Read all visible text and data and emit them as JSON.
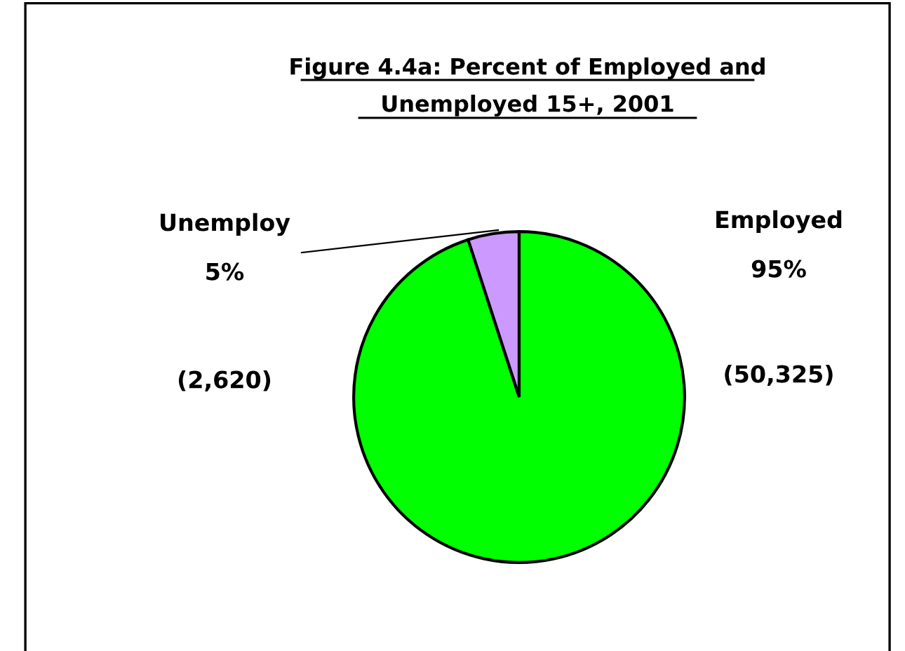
{
  "chart_data": {
    "type": "pie",
    "title": "Figure 4.4a: Percent of Employed and\nUnemployed 15+, 2001",
    "categories": [
      "Unemploy",
      "Employed"
    ],
    "values": [
      5,
      95
    ],
    "colors": [
      "#cc99ff",
      "#00ff00"
    ],
    "value_labels": [
      "5%",
      "95%"
    ],
    "annotations": [
      "(2,620)",
      "(50,325)"
    ],
    "legend": false
  }
}
